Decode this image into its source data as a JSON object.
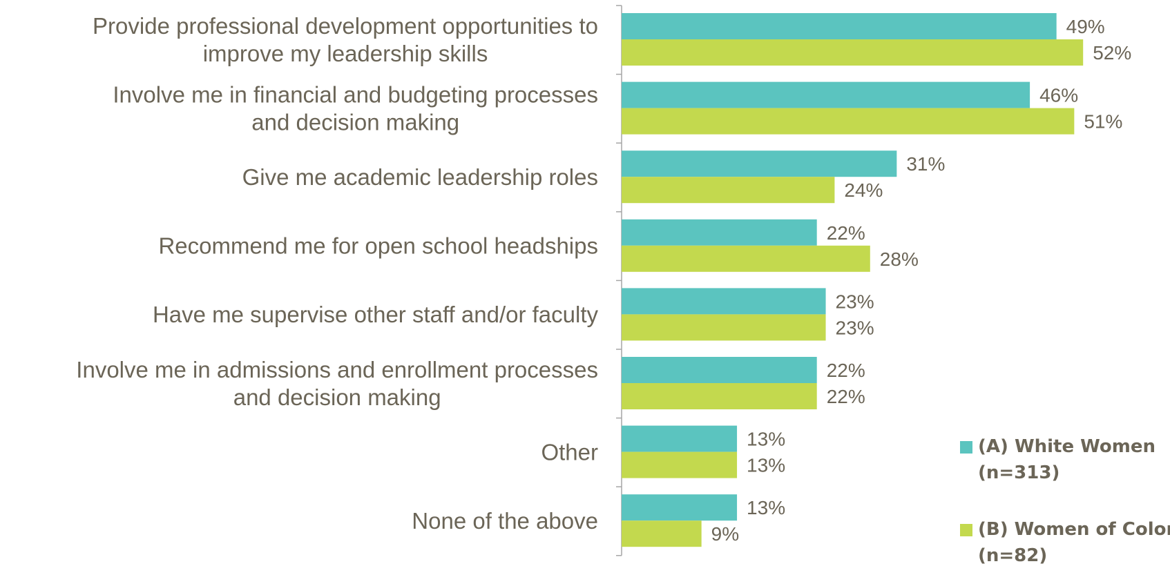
{
  "chart_data": {
    "type": "bar",
    "orientation": "horizontal",
    "categories": [
      [
        "Provide professional development opportunities to",
        "improve my leadership skills"
      ],
      [
        "Involve me in financial and budgeting processes",
        "and decision making"
      ],
      [
        "Give me academic leadership roles"
      ],
      [
        "Recommend me for open school headships"
      ],
      [
        "Have me supervise other staff and/or faculty"
      ],
      [
        "Involve me in admissions and enrollment processes",
        "and decision making"
      ],
      [
        "Other"
      ],
      [
        "None of the above"
      ]
    ],
    "series": [
      {
        "name_lines": [
          "(A) White Women",
          "(n=313)"
        ],
        "color": "#5bc4bf",
        "values": [
          49,
          46,
          31,
          22,
          23,
          22,
          13,
          13
        ],
        "labels": [
          "49%",
          "46%",
          "31%",
          "22%",
          "23%",
          "22%",
          "13%",
          "13%"
        ]
      },
      {
        "name_lines": [
          "(B) Women of Color",
          "(n=82)"
        ],
        "color": "#c3d94e",
        "values": [
          52,
          51,
          24,
          28,
          23,
          22,
          13,
          9
        ],
        "labels": [
          "52%",
          "51%",
          "24%",
          "28%",
          "23%",
          "22%",
          "13%",
          "9%"
        ]
      }
    ],
    "xlim": [
      0,
      55
    ],
    "grid": false,
    "legend": "bottom-right",
    "title": "",
    "xlabel": "",
    "ylabel": ""
  }
}
